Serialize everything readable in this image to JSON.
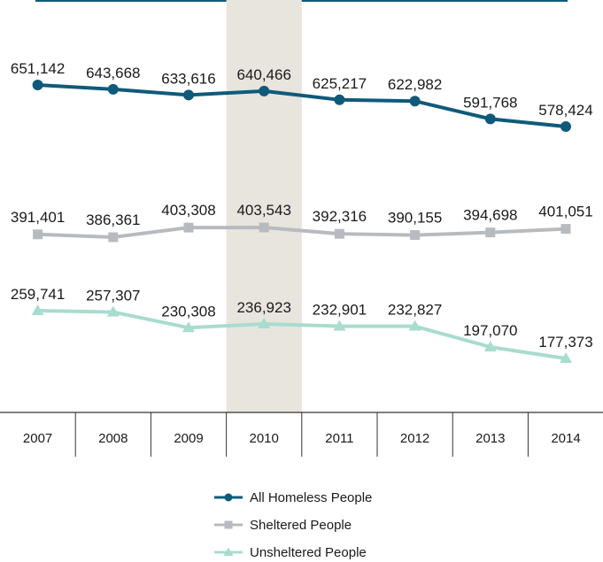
{
  "chart_data": {
    "type": "line",
    "title": "",
    "xlabel": "",
    "ylabel": "",
    "x": [
      "2007",
      "2008",
      "2009",
      "2010",
      "2011",
      "2012",
      "2013",
      "2014"
    ],
    "highlight_category": "2010",
    "grid": false,
    "legend_position": "bottom",
    "series": [
      {
        "name": "All Homeless People",
        "values": [
          651142,
          643668,
          633616,
          640466,
          625217,
          622982,
          591768,
          578424
        ],
        "labels": [
          "651,142",
          "643,668",
          "633,616",
          "640,466",
          "625,217",
          "622,982",
          "591,768",
          "578,424"
        ],
        "color": "#0f5a7a",
        "marker": "circle"
      },
      {
        "name": "Sheltered People",
        "values": [
          391401,
          386361,
          403308,
          403543,
          392316,
          390155,
          394698,
          401051
        ],
        "labels": [
          "391,401",
          "386,361",
          "403,308",
          "403,543",
          "392,316",
          "390,155",
          "394,698",
          "401,051"
        ],
        "color": "#b7bbbf",
        "marker": "square"
      },
      {
        "name": "Unsheltered People",
        "values": [
          259741,
          257307,
          230308,
          236923,
          232901,
          232827,
          197070,
          177373
        ],
        "labels": [
          "259,741",
          "257,307",
          "230,308",
          "236,923",
          "232,901",
          "232,827",
          "197,070",
          "177,373"
        ],
        "color": "#a8dccf",
        "marker": "triangle"
      }
    ],
    "colors": {
      "highlight_band": "#e8e4de",
      "top_rule": "#0f5a7a",
      "axis": "#333333"
    }
  }
}
